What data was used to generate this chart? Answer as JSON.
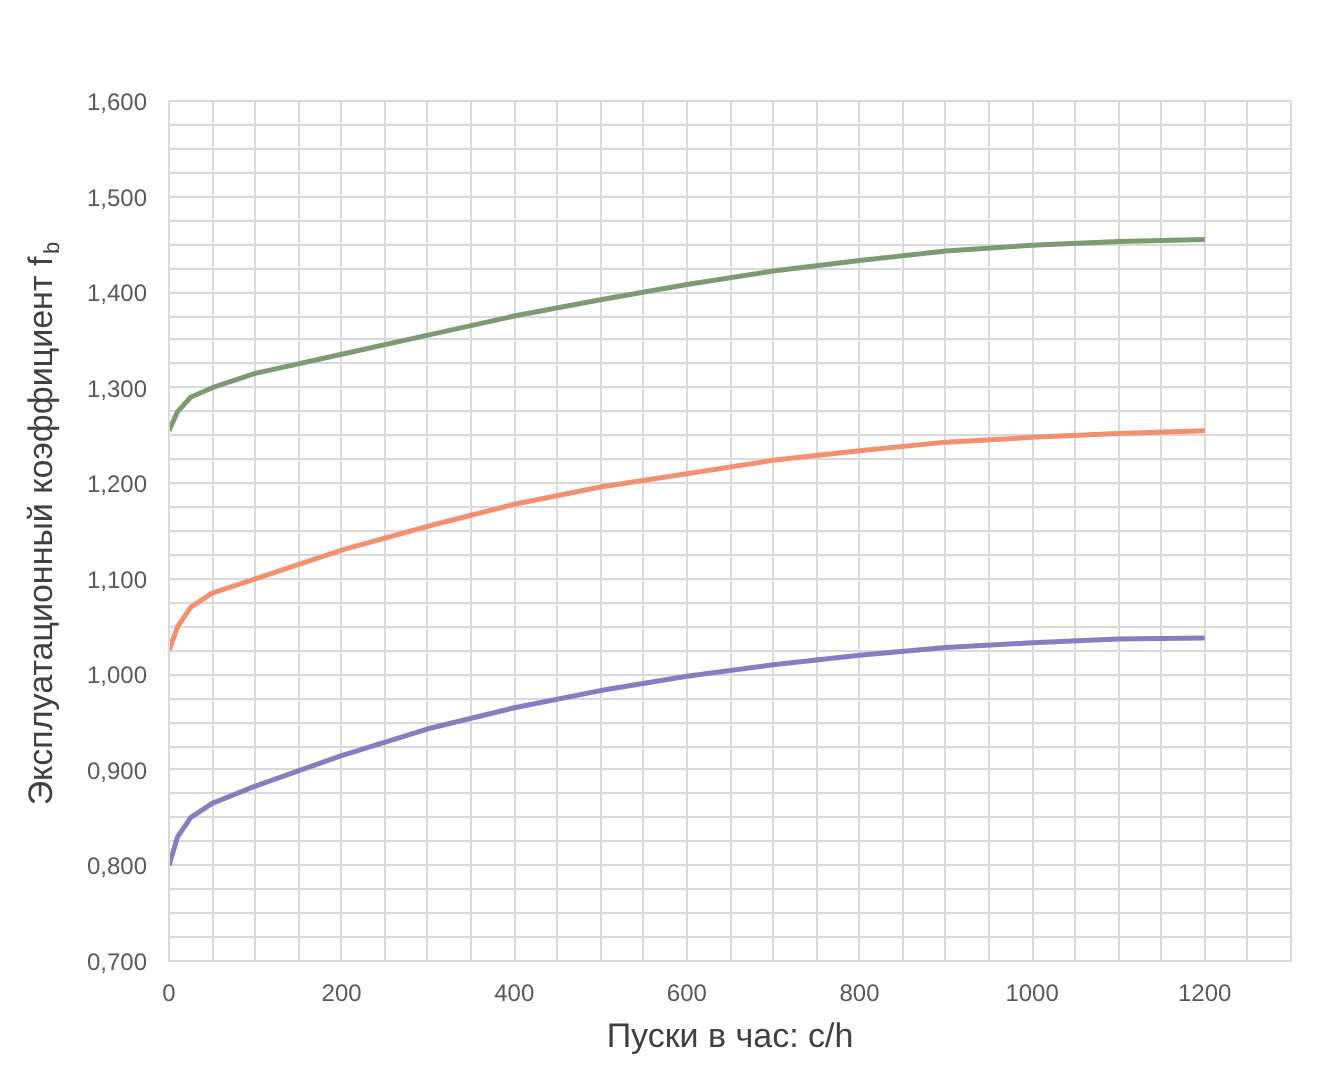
{
  "chart_data": {
    "type": "line",
    "xlabel": "Пуски в час: c/h",
    "ylabel": "Эксплуатационный коэффициент f$_{b}$",
    "x": [
      0,
      10,
      25,
      50,
      100,
      200,
      300,
      400,
      500,
      600,
      700,
      800,
      900,
      1000,
      1100,
      1200
    ],
    "series": [
      {
        "color": "#7f9a73",
        "values": [
          1.255,
          1.275,
          1.29,
          1.3,
          1.315,
          1.335,
          1.355,
          1.375,
          1.392,
          1.408,
          1.422,
          1.433,
          1.443,
          1.449,
          1.453,
          1.455
        ]
      },
      {
        "color": "#f2906f",
        "values": [
          1.025,
          1.05,
          1.07,
          1.085,
          1.1,
          1.13,
          1.155,
          1.178,
          1.196,
          1.21,
          1.224,
          1.234,
          1.243,
          1.248,
          1.252,
          1.255
        ]
      },
      {
        "color": "#8a7cc0",
        "values": [
          0.8,
          0.83,
          0.85,
          0.865,
          0.883,
          0.915,
          0.943,
          0.965,
          0.983,
          0.998,
          1.01,
          1.02,
          1.028,
          1.033,
          1.037,
          1.038
        ]
      }
    ],
    "xlim": [
      0,
      1300
    ],
    "xticks": [
      0,
      {
        "value": 50,
        "label": null
      },
      200,
      {
        "value": 100,
        "label": null
      },
      {
        "value": 150,
        "label": null
      },
      {
        "value": 250,
        "label": null
      },
      {
        "value": 300,
        "label": null
      },
      {
        "value": 350,
        "label": null
      },
      400,
      {
        "value": 450,
        "label": null
      },
      {
        "value": 500,
        "label": null
      },
      {
        "value": 550,
        "label": null
      },
      600,
      {
        "value": 650,
        "label": null
      },
      {
        "value": 700,
        "label": null
      },
      {
        "value": 750,
        "label": null
      },
      800,
      {
        "value": 850,
        "label": null
      },
      {
        "value": 900,
        "label": null
      },
      {
        "value": 950,
        "label": null
      },
      1000,
      {
        "value": 1050,
        "label": null
      },
      {
        "value": 1100,
        "label": null
      },
      {
        "value": 1150,
        "label": null
      },
      1200,
      {
        "value": 1250,
        "label": null
      },
      {
        "value": 1300,
        "label": null
      }
    ],
    "ylim": [
      0.7,
      1.6
    ],
    "yticks": [
      {
        "value": 0.7,
        "label": "0,700"
      },
      {
        "value": 0.725,
        "label": null
      },
      {
        "value": 0.75,
        "label": null
      },
      {
        "value": 0.775,
        "label": null
      },
      {
        "value": 0.8,
        "label": "0,800"
      },
      {
        "value": 0.825,
        "label": null
      },
      {
        "value": 0.85,
        "label": null
      },
      {
        "value": 0.875,
        "label": null
      },
      {
        "value": 0.9,
        "label": "0,900"
      },
      {
        "value": 0.925,
        "label": null
      },
      {
        "value": 0.95,
        "label": null
      },
      {
        "value": 0.975,
        "label": null
      },
      {
        "value": 1.0,
        "label": "1,000"
      },
      {
        "value": 1.025,
        "label": null
      },
      {
        "value": 1.05,
        "label": null
      },
      {
        "value": 1.075,
        "label": null
      },
      {
        "value": 1.1,
        "label": "1,100"
      },
      {
        "value": 1.125,
        "label": null
      },
      {
        "value": 1.15,
        "label": null
      },
      {
        "value": 1.175,
        "label": null
      },
      {
        "value": 1.2,
        "label": "1,200"
      },
      {
        "value": 1.225,
        "label": null
      },
      {
        "value": 1.25,
        "label": null
      },
      {
        "value": 1.275,
        "label": null
      },
      {
        "value": 1.3,
        "label": "1,300"
      },
      {
        "value": 1.325,
        "label": null
      },
      {
        "value": 1.35,
        "label": null
      },
      {
        "value": 1.375,
        "label": null
      },
      {
        "value": 1.4,
        "label": "1,400"
      },
      {
        "value": 1.425,
        "label": null
      },
      {
        "value": 1.45,
        "label": null
      },
      {
        "value": 1.475,
        "label": null
      },
      {
        "value": 1.5,
        "label": "1,500"
      },
      {
        "value": 1.525,
        "label": null
      },
      {
        "value": 1.55,
        "label": null
      },
      {
        "value": 1.575,
        "label": null
      },
      {
        "value": 1.6,
        "label": "1,600"
      }
    ],
    "grid": true,
    "marker": "none",
    "line_style": "solid"
  }
}
